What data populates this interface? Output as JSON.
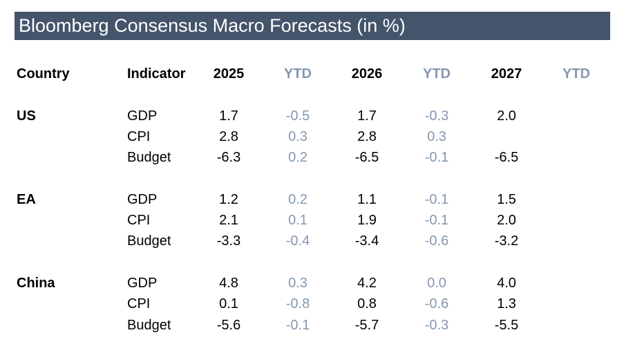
{
  "title": "Bloomberg Consensus Macro Forecasts (in %)",
  "headers": {
    "country": "Country",
    "indicator": "Indicator",
    "y2025": "2025",
    "ytd1": "YTD",
    "y2026": "2026",
    "ytd2": "YTD",
    "y2027": "2027",
    "ytd3": "YTD"
  },
  "groups": [
    {
      "country": "US",
      "rows": [
        {
          "indicator": "GDP",
          "v2025": "1.7",
          "ytd2025": "-0.5",
          "v2026": "1.7",
          "ytd2026": "-0.3",
          "v2027": "2.0",
          "ytd2027": ""
        },
        {
          "indicator": "CPI",
          "v2025": "2.8",
          "ytd2025": "0.3",
          "v2026": "2.8",
          "ytd2026": "0.3",
          "v2027": "",
          "ytd2027": ""
        },
        {
          "indicator": "Budget",
          "v2025": "-6.3",
          "ytd2025": "0.2",
          "v2026": "-6.5",
          "ytd2026": "-0.1",
          "v2027": "-6.5",
          "ytd2027": ""
        }
      ]
    },
    {
      "country": "EA",
      "rows": [
        {
          "indicator": "GDP",
          "v2025": "1.2",
          "ytd2025": "0.2",
          "v2026": "1.1",
          "ytd2026": "-0.1",
          "v2027": "1.5",
          "ytd2027": ""
        },
        {
          "indicator": "CPI",
          "v2025": "2.1",
          "ytd2025": "0.1",
          "v2026": "1.9",
          "ytd2026": "-0.1",
          "v2027": "2.0",
          "ytd2027": ""
        },
        {
          "indicator": "Budget",
          "v2025": "-3.3",
          "ytd2025": "-0.4",
          "v2026": "-3.4",
          "ytd2026": "-0.6",
          "v2027": "-3.2",
          "ytd2027": ""
        }
      ]
    },
    {
      "country": "China",
      "rows": [
        {
          "indicator": "GDP",
          "v2025": "4.8",
          "ytd2025": "0.3",
          "v2026": "4.2",
          "ytd2026": "0.0",
          "v2027": "4.0",
          "ytd2027": ""
        },
        {
          "indicator": "CPI",
          "v2025": "0.1",
          "ytd2025": "-0.8",
          "v2026": "0.8",
          "ytd2026": "-0.6",
          "v2027": "1.3",
          "ytd2027": ""
        },
        {
          "indicator": "Budget",
          "v2025": "-5.6",
          "ytd2025": "-0.1",
          "v2026": "-5.7",
          "ytd2026": "-0.3",
          "v2027": "-5.5",
          "ytd2027": ""
        }
      ]
    }
  ]
}
